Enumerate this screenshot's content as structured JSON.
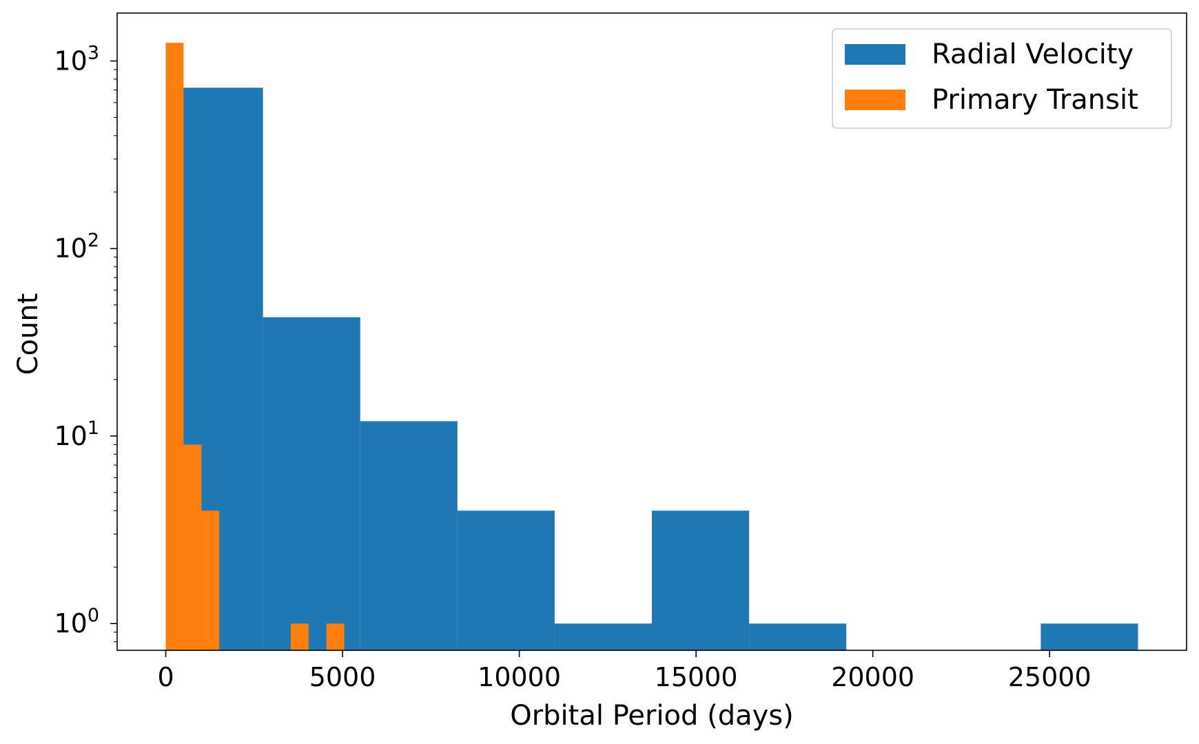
{
  "chart_data": {
    "type": "bar",
    "subtype": "histogram",
    "xlabel": "Orbital Period (days)",
    "ylabel": "Count",
    "yscale": "log",
    "xlim": [
      -1375,
      28875
    ],
    "ylim": [
      0.72,
      1800
    ],
    "grid": false,
    "legend_position": "top-right",
    "x_ticks": [
      {
        "value": 0,
        "label": "0"
      },
      {
        "value": 5000,
        "label": "5000"
      },
      {
        "value": 10000,
        "label": "10000"
      },
      {
        "value": 15000,
        "label": "15000"
      },
      {
        "value": 20000,
        "label": "20000"
      },
      {
        "value": 25000,
        "label": "25000"
      }
    ],
    "y_ticks": [
      {
        "value": 1,
        "base": "10",
        "exp": "0"
      },
      {
        "value": 10,
        "base": "10",
        "exp": "1"
      },
      {
        "value": 100,
        "base": "10",
        "exp": "2"
      },
      {
        "value": 1000,
        "base": "10",
        "exp": "3"
      }
    ],
    "series": [
      {
        "name": "Radial Velocity",
        "color": "#1f77b4",
        "bins": [
          {
            "x0": 0,
            "x1": 2750,
            "count": 720
          },
          {
            "x0": 2750,
            "x1": 5500,
            "count": 43
          },
          {
            "x0": 5500,
            "x1": 8250,
            "count": 12
          },
          {
            "x0": 8250,
            "x1": 11000,
            "count": 4
          },
          {
            "x0": 11000,
            "x1": 13750,
            "count": 1
          },
          {
            "x0": 13750,
            "x1": 16500,
            "count": 4
          },
          {
            "x0": 16500,
            "x1": 19250,
            "count": 1
          },
          {
            "x0": 19250,
            "x1": 22000,
            "count": 0
          },
          {
            "x0": 22000,
            "x1": 24750,
            "count": 0
          },
          {
            "x0": 24750,
            "x1": 27500,
            "count": 1
          }
        ]
      },
      {
        "name": "Primary Transit",
        "color": "#ff7f0e",
        "bins": [
          {
            "x0": 0,
            "x1": 505,
            "count": 1250
          },
          {
            "x0": 505,
            "x1": 1010,
            "count": 9
          },
          {
            "x0": 1010,
            "x1": 1515,
            "count": 4
          },
          {
            "x0": 1515,
            "x1": 2020,
            "count": 0
          },
          {
            "x0": 2020,
            "x1": 2525,
            "count": 0
          },
          {
            "x0": 2525,
            "x1": 3030,
            "count": 0
          },
          {
            "x0": 3030,
            "x1": 3535,
            "count": 0
          },
          {
            "x0": 3535,
            "x1": 4040,
            "count": 1
          },
          {
            "x0": 4040,
            "x1": 4545,
            "count": 0
          },
          {
            "x0": 4545,
            "x1": 5050,
            "count": 1
          }
        ]
      }
    ]
  }
}
